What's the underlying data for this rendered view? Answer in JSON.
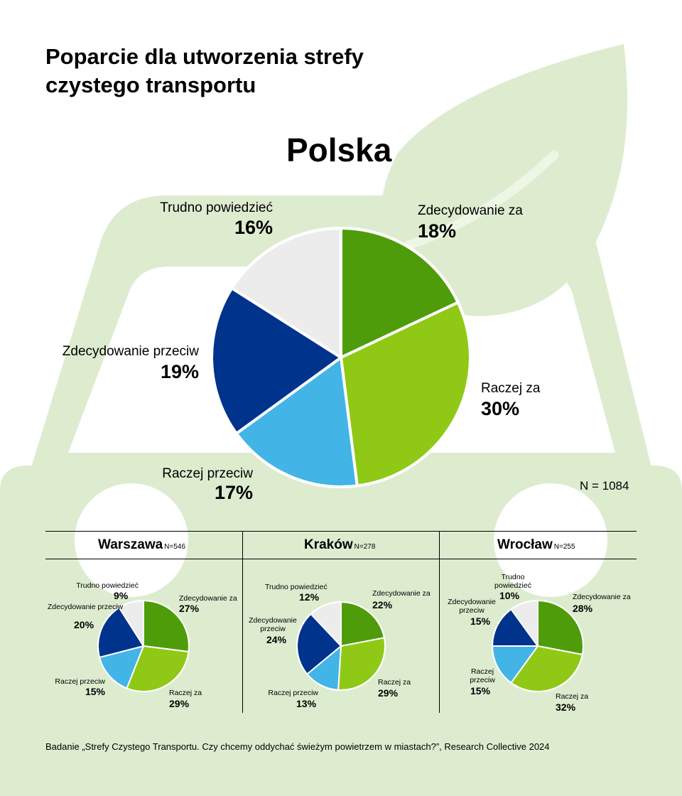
{
  "title": "Poparcie dla utworzenia strefy czystego transportu",
  "total_n": "N = 1084",
  "footer": "Badanie „Strefy Czystego Transportu. Czy chcemy oddychać świeżym powietrzem w miastach?”, Research Collective 2024",
  "colors": {
    "zdecydowanie_za": "#4f9c0a",
    "raczej_za": "#8fc916",
    "raczej_przeciw": "#43b4e6",
    "zdecydowanie_przeciw": "#00338b",
    "trudno": "#ececec",
    "background_shape": "#ddeccf"
  },
  "chart_data": [
    {
      "type": "pie",
      "title": "Polska",
      "categories": [
        "Zdecydowanie za",
        "Raczej za",
        "Raczej przeciw",
        "Zdecydowanie przeciw",
        "Trudno powiedzieć"
      ],
      "values": [
        18,
        30,
        17,
        19,
        16
      ],
      "labels": [
        "18%",
        "30%",
        "17%",
        "19%",
        "16%"
      ]
    },
    {
      "type": "pie",
      "title": "Warszawa",
      "n": "N=546",
      "categories": [
        "Zdecydowanie za",
        "Raczej za",
        "Raczej przeciw",
        "Zdecydowanie przeciw",
        "Trudno powiedzieć"
      ],
      "values": [
        27,
        29,
        15,
        20,
        9
      ],
      "labels": [
        "27%",
        "29%",
        "15%",
        "20%",
        "9%"
      ]
    },
    {
      "type": "pie",
      "title": "Kraków",
      "n": "N=278",
      "categories": [
        "Zdecydowanie za",
        "Raczej za",
        "Raczej przeciw",
        "Zdecydowanie przeciw",
        "Trudno powiedzieć"
      ],
      "values": [
        22,
        29,
        13,
        24,
        12
      ],
      "labels": [
        "22%",
        "29%",
        "13%",
        "24%",
        "12%"
      ]
    },
    {
      "type": "pie",
      "title": "Wrocław",
      "n": "N=255",
      "categories": [
        "Zdecydowanie za",
        "Raczej za",
        "Raczej przeciw",
        "Zdecydowanie przeciw",
        "Trudno powiedzieć"
      ],
      "values": [
        28,
        32,
        15,
        15,
        10
      ],
      "labels": [
        "28%",
        "32%",
        "15%",
        "15%",
        "10%"
      ]
    }
  ]
}
